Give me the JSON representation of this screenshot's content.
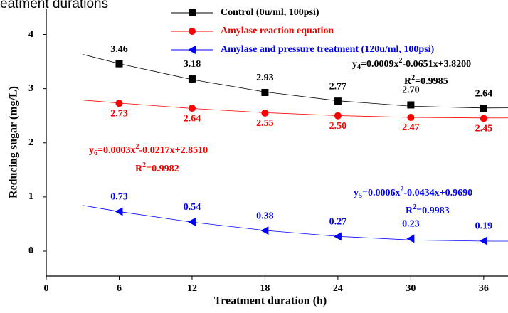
{
  "caption": "eatment durations",
  "chart_data": {
    "type": "line",
    "x_label": "Treatment duration (h)",
    "y_label": "Reducing sugar (mg/L)",
    "xlim": [
      0,
      38
    ],
    "ylim": [
      -0.46,
      4.48
    ],
    "xticks": [
      0,
      6,
      12,
      18,
      24,
      30,
      36
    ],
    "yticks": [
      0,
      1,
      2,
      3,
      4
    ],
    "x": [
      6,
      12,
      18,
      24,
      30,
      36
    ],
    "series": [
      {
        "name": "Control (0u/ml, 100psi)",
        "color": "#000000",
        "marker": "square",
        "label_side": "above",
        "values": [
          3.46,
          3.18,
          2.93,
          2.77,
          2.7,
          2.64
        ],
        "value_labels": [
          "3.46",
          "3.18",
          "2.93",
          "2.77",
          "2.70",
          "2.64"
        ],
        "trend": {
          "x": [
            3,
            6,
            12,
            18,
            24,
            30,
            36,
            38
          ],
          "values": [
            3.633,
            3.462,
            3.168,
            2.94,
            2.776,
            2.677,
            2.643,
            2.646
          ]
        },
        "equation": [
          "y",
          "4",
          "=0.0009x",
          "2",
          "-0.0651x+3.8200"
        ],
        "r2": [
          "R",
          "2",
          "=0.9985"
        ]
      },
      {
        "name": "Amylase reaction equation",
        "color": "#ff0000",
        "marker": "circle",
        "label_side": "below",
        "values": [
          2.73,
          2.64,
          2.55,
          2.5,
          2.47,
          2.45
        ],
        "value_labels": [
          "2.73",
          "2.64",
          "2.55",
          "2.50",
          "2.47",
          "2.45"
        ],
        "trend": {
          "x": [
            3,
            6,
            12,
            18,
            24,
            30,
            36,
            38
          ],
          "values": [
            2.789,
            2.734,
            2.634,
            2.557,
            2.503,
            2.47,
            2.459,
            2.46
          ]
        },
        "equation": [
          "y",
          "6",
          "=0.0003x",
          "2",
          "-0.0217x+2.8510"
        ],
        "r2": [
          "R",
          "2",
          "=0.9982"
        ]
      },
      {
        "name": "Amylase and pressure treatment (120u/ml, 100psi)",
        "color": "#0000ff",
        "marker": "triangle-left",
        "label_side": "above",
        "values": [
          0.73,
          0.54,
          0.38,
          0.27,
          0.23,
          0.19
        ],
        "value_labels": [
          "0.73",
          "0.54",
          "0.38",
          "0.27",
          "0.23",
          "0.19"
        ],
        "trend": {
          "x": [
            3,
            6,
            12,
            18,
            24,
            30,
            36,
            38
          ],
          "values": [
            0.844,
            0.73,
            0.535,
            0.382,
            0.272,
            0.206,
            0.184,
            0.184
          ]
        },
        "equation": [
          "y",
          "5",
          "=0.0006x",
          "2",
          "-0.0434x+0.9690"
        ],
        "r2": [
          "R",
          "2",
          "=0.9983"
        ]
      }
    ]
  }
}
